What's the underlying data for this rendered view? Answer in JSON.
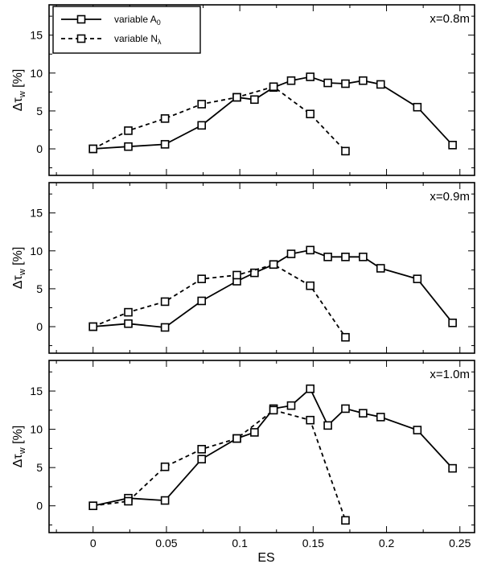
{
  "chart_data": {
    "type": "line",
    "xlabel": "ES",
    "ylabel": "Δτ",
    "ylabel_sub": "w",
    "ylabel_unit": "[%]",
    "xlim": [
      -0.03,
      0.26
    ],
    "xticks": [
      0,
      0.05,
      0.1,
      0.15,
      0.2,
      0.25
    ],
    "xtick_labels": [
      "0",
      "0.05",
      "0.1",
      "0.15",
      "0.2",
      "0.25"
    ],
    "ylim": [
      -3.5,
      19
    ],
    "yticks": [
      0,
      5,
      10,
      15
    ],
    "ytick_labels": [
      "0",
      "5",
      "10",
      "15"
    ],
    "legend": {
      "placement": "top-left",
      "entries": [
        {
          "label": "variable A",
          "sub": "0",
          "style": "solid"
        },
        {
          "label": "variable N",
          "sub": "λ",
          "style": "dashed"
        }
      ]
    },
    "panels": [
      {
        "label": "x=0.8m",
        "series": [
          {
            "name": "variable A0",
            "style": "solid",
            "x": [
              0,
              0.024,
              0.049,
              0.074,
              0.098,
              0.11,
              0.123,
              0.135,
              0.148,
              0.16,
              0.172,
              0.184,
              0.196,
              0.221,
              0.245
            ],
            "y": [
              0,
              0.3,
              0.6,
              3.1,
              6.8,
              6.5,
              8.1,
              9.0,
              9.5,
              8.7,
              8.6,
              9.0,
              8.5,
              5.5,
              0.5
            ]
          },
          {
            "name": "variable Nλ",
            "style": "dashed",
            "x": [
              0,
              0.024,
              0.049,
              0.074,
              0.098,
              0.123,
              0.148,
              0.172
            ],
            "y": [
              0,
              2.4,
              4.0,
              5.9,
              6.8,
              8.2,
              4.6,
              -0.3
            ]
          }
        ]
      },
      {
        "label": "x=0.9m",
        "series": [
          {
            "name": "variable A0",
            "style": "solid",
            "x": [
              0,
              0.024,
              0.049,
              0.074,
              0.098,
              0.11,
              0.123,
              0.135,
              0.148,
              0.16,
              0.172,
              0.184,
              0.196,
              0.221,
              0.245
            ],
            "y": [
              0,
              0.4,
              -0.1,
              3.4,
              6.0,
              7.1,
              8.2,
              9.6,
              10.1,
              9.2,
              9.2,
              9.2,
              7.7,
              6.3,
              0.5
            ]
          },
          {
            "name": "variable Nλ",
            "style": "dashed",
            "x": [
              0,
              0.024,
              0.049,
              0.074,
              0.098,
              0.123,
              0.148,
              0.172
            ],
            "y": [
              0,
              1.9,
              3.3,
              6.3,
              6.8,
              8.2,
              5.4,
              -1.4
            ]
          }
        ]
      },
      {
        "label": "x=1.0m",
        "series": [
          {
            "name": "variable A0",
            "style": "solid",
            "x": [
              0,
              0.024,
              0.049,
              0.074,
              0.098,
              0.11,
              0.123,
              0.135,
              0.148,
              0.16,
              0.172,
              0.184,
              0.196,
              0.221,
              0.245
            ],
            "y": [
              0,
              1.0,
              0.7,
              6.1,
              8.8,
              9.6,
              12.7,
              13.1,
              15.3,
              10.5,
              12.7,
              12.1,
              11.6,
              9.9,
              4.9
            ]
          },
          {
            "name": "variable Nλ",
            "style": "dashed",
            "x": [
              0,
              0.024,
              0.049,
              0.074,
              0.098,
              0.123,
              0.148,
              0.172
            ],
            "y": [
              0,
              0.6,
              5.1,
              7.4,
              8.8,
              12.5,
              11.2,
              -1.9
            ]
          }
        ]
      }
    ]
  }
}
